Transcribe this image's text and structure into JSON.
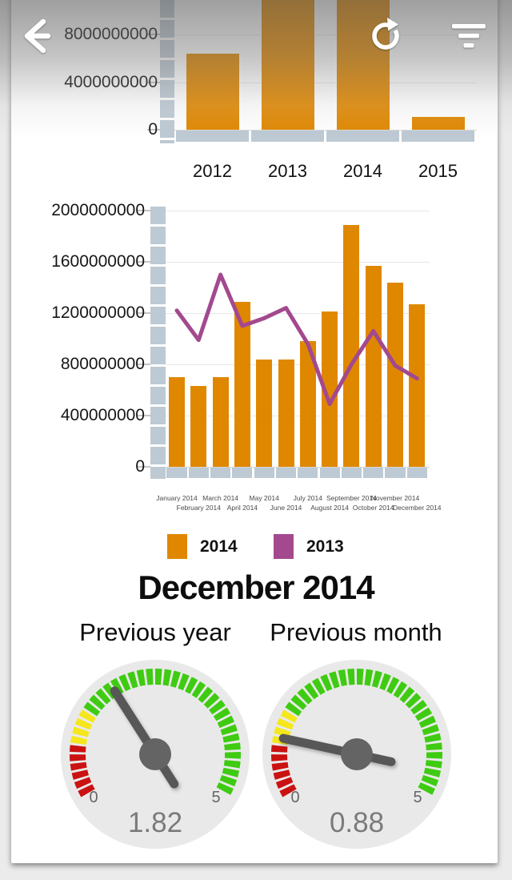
{
  "heading": "December 2014",
  "header": {
    "icons": [
      {
        "name": "back"
      },
      {
        "name": "refresh"
      },
      {
        "name": "filter"
      }
    ]
  },
  "colors": {
    "bar_orange": "#e08700",
    "line_purple": "#a3498e",
    "axis_blue_gray": "#bdc9d3",
    "gauge_red": "#cb1212",
    "gauge_yellow": "#f6e71c",
    "gauge_green": "#3fcb12",
    "needle_gray": "#575757"
  },
  "chart_data": [
    {
      "type": "bar",
      "title": "",
      "categories": [
        "2012",
        "2013",
        "2014",
        "2015"
      ],
      "values": [
        6400000000,
        11000000000,
        11000000000,
        1050000000
      ],
      "values_offscreen_top": [
        "2013",
        "2014"
      ],
      "yticks": [
        {
          "value": 0,
          "label": "0"
        },
        {
          "value": 4000000000,
          "label": "4000000000"
        },
        {
          "value": 8000000000,
          "label": "8000000000"
        }
      ],
      "ylim_visible": [
        0,
        10900000000
      ],
      "bar_color": "#e08700",
      "grid": true
    },
    {
      "type": "combo",
      "title": "",
      "categories": [
        "January 2014",
        "February 2014",
        "March 2014",
        "April 2014",
        "May 2014",
        "June 2014",
        "July 2014",
        "August 2014",
        "September 2014",
        "October 2014",
        "November 2014",
        "December 2014"
      ],
      "series": [
        {
          "name": "2014",
          "type": "bar",
          "color": "#e08700",
          "values": [
            700000000,
            630000000,
            700000000,
            1290000000,
            840000000,
            840000000,
            980000000,
            1210000000,
            1890000000,
            1570000000,
            1440000000,
            1270000000
          ]
        },
        {
          "name": "2013",
          "type": "line",
          "color": "#a3498e",
          "values": [
            1220000000,
            990000000,
            1500000000,
            1100000000,
            1160000000,
            1240000000,
            960000000,
            490000000,
            800000000,
            1060000000,
            790000000,
            690000000
          ]
        }
      ],
      "yticks": [
        {
          "value": 0,
          "label": "0"
        },
        {
          "value": 400000000,
          "label": "400000000"
        },
        {
          "value": 800000000,
          "label": "800000000"
        },
        {
          "value": 1200000000,
          "label": "1200000000"
        },
        {
          "value": 1600000000,
          "label": "1600000000"
        },
        {
          "value": 2000000000,
          "label": "2000000000"
        }
      ],
      "ylim": [
        0,
        2000000000
      ],
      "grid": true,
      "legend": [
        "2014",
        "2013"
      ],
      "legend_position": "bottom"
    },
    {
      "type": "gauge",
      "title": "Previous year",
      "value": 1.82,
      "value_label": "1.82",
      "min": 0,
      "max": 5,
      "min_label": "0",
      "max_label": "5",
      "zones": [
        {
          "from": 0,
          "to": 0.8,
          "color": "#cb1212"
        },
        {
          "from": 0.8,
          "to": 1.33,
          "color": "#f6e71c"
        },
        {
          "from": 1.33,
          "to": 5,
          "color": "#3fcb12"
        }
      ]
    },
    {
      "type": "gauge",
      "title": "Previous month",
      "value": 0.88,
      "value_label": "0.88",
      "min": 0,
      "max": 5,
      "min_label": "0",
      "max_label": "5",
      "zones": [
        {
          "from": 0,
          "to": 0.8,
          "color": "#cb1212"
        },
        {
          "from": 0.8,
          "to": 1.33,
          "color": "#f6e71c"
        },
        {
          "from": 1.33,
          "to": 5,
          "color": "#3fcb12"
        }
      ]
    }
  ]
}
